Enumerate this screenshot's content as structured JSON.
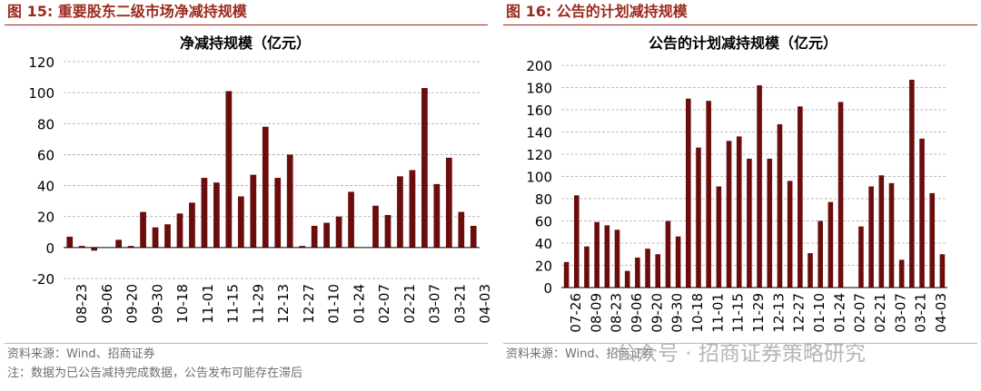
{
  "charts": [
    {
      "figure_title": "图 15:  重要股东二级市场净减持规模",
      "source": "资料来源：Wind、招商证券",
      "note": "注：数据为已公告减持完成数据，公告发布可能存在滞后"
    },
    {
      "figure_title": "图 16:  公告的计划减持规模",
      "source": "资料来源：Wind、招商证券"
    }
  ],
  "watermark": "公众号 · 招商证券策略研究",
  "colors": {
    "bar": "#6b0d0d",
    "accent": "#9b2a1d"
  },
  "chart_data": [
    {
      "type": "bar",
      "title": "净减持规模（亿元）",
      "ylim": [
        -20,
        120
      ],
      "yticks": [
        -20,
        0,
        20,
        40,
        60,
        80,
        100,
        120
      ],
      "grid": true,
      "xtick_labels": [
        "08-23",
        "09-06",
        "09-20",
        "09-30",
        "10-18",
        "11-01",
        "11-15",
        "11-29",
        "12-13",
        "12-27",
        "01-10",
        "01-24",
        "02-07",
        "02-21",
        "03-07",
        "03-21",
        "04-03"
      ],
      "values": [
        7,
        1,
        -2,
        0,
        5,
        1,
        23,
        13,
        15,
        22,
        29,
        45,
        42,
        101,
        33,
        47,
        78,
        45,
        60,
        1,
        14,
        16,
        20,
        36,
        0,
        27,
        21,
        46,
        50,
        103,
        41,
        58,
        23,
        14
      ]
    },
    {
      "type": "bar",
      "title": "公告的计划减持规模（亿元）",
      "ylim": [
        0,
        200
      ],
      "yticks": [
        0,
        20,
        40,
        60,
        80,
        100,
        120,
        140,
        160,
        180,
        200
      ],
      "grid": true,
      "xtick_labels": [
        "07-26",
        "08-09",
        "08-23",
        "09-06",
        "09-20",
        "09-30",
        "10-18",
        "11-01",
        "11-15",
        "11-29",
        "12-13",
        "12-27",
        "01-10",
        "01-24",
        "02-07",
        "02-21",
        "03-07",
        "03-21",
        "04-03"
      ],
      "values": [
        23,
        83,
        37,
        59,
        56,
        52,
        15,
        27,
        35,
        30,
        60,
        46,
        170,
        126,
        168,
        91,
        132,
        136,
        116,
        182,
        116,
        147,
        96,
        163,
        31,
        60,
        77,
        167,
        0,
        55,
        91,
        101,
        94,
        25,
        187,
        134,
        85,
        30
      ]
    }
  ]
}
